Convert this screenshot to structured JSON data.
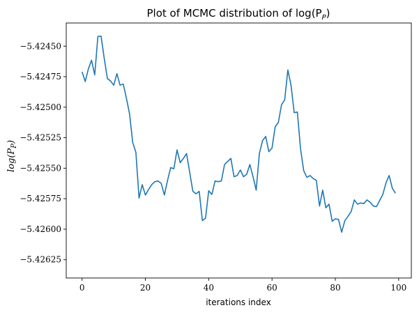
{
  "chart_data": {
    "type": "line",
    "title": "Plot of MCMC distribution of log(P",
    "title_subscript": "P",
    "title_suffix": ")",
    "xlabel": "iterations index",
    "ylabel": "log(P",
    "ylabel_subscript": "P",
    "ylabel_suffix": ")",
    "xlim": [
      -5,
      104
    ],
    "ylim": [
      -5.4264,
      -5.42431
    ],
    "x_ticks": [
      0,
      20,
      40,
      60,
      80,
      100
    ],
    "x_tick_labels": [
      "0",
      "20",
      "40",
      "60",
      "80",
      "100"
    ],
    "y_ticks": [
      -5.4245,
      -5.42475,
      -5.425,
      -5.42525,
      -5.4255,
      -5.42575,
      -5.426,
      -5.42625
    ],
    "y_tick_labels": [
      "−5.42450",
      "−5.42475",
      "−5.42500",
      "−5.42525",
      "−5.42550",
      "−5.42575",
      "−5.42600",
      "−5.42625"
    ],
    "grid": false,
    "line_color": "#1f77b4",
    "series": [
      {
        "x": [
          0,
          1,
          2,
          3,
          4,
          5,
          6,
          7,
          8,
          9,
          10,
          11,
          12,
          13,
          14,
          15,
          16,
          17,
          18,
          19,
          20,
          21,
          22,
          23,
          24,
          25,
          26,
          27,
          28,
          29,
          30,
          31,
          32,
          33,
          34,
          35,
          36,
          37,
          38,
          39,
          40,
          41,
          42,
          43,
          44,
          45,
          46,
          47,
          48,
          49,
          50,
          51,
          52,
          53,
          54,
          55,
          56,
          57,
          58,
          59,
          60,
          61,
          62,
          63,
          64,
          65,
          66,
          67,
          68,
          69,
          70,
          71,
          72,
          73,
          74,
          75,
          76,
          77,
          78,
          79,
          80,
          81,
          82,
          83,
          84,
          85,
          86,
          87,
          88,
          89,
          90,
          91,
          92,
          93,
          94,
          95,
          96,
          97,
          98,
          99
        ],
        "values": [
          -5.42471,
          -5.42479,
          -5.424685,
          -5.424615,
          -5.424735,
          -5.42442,
          -5.424418,
          -5.4246,
          -5.424765,
          -5.424785,
          -5.42482,
          -5.424725,
          -5.42482,
          -5.42481,
          -5.424925,
          -5.425055,
          -5.42529,
          -5.42537,
          -5.425745,
          -5.425635,
          -5.42572,
          -5.425675,
          -5.425635,
          -5.42561,
          -5.425605,
          -5.425625,
          -5.42572,
          -5.4256,
          -5.425495,
          -5.425505,
          -5.42535,
          -5.425455,
          -5.42542,
          -5.42538,
          -5.425535,
          -5.42569,
          -5.42571,
          -5.42569,
          -5.42593,
          -5.42591,
          -5.425685,
          -5.425715,
          -5.425605,
          -5.42561,
          -5.425605,
          -5.42547,
          -5.425445,
          -5.42542,
          -5.42557,
          -5.42556,
          -5.425515,
          -5.42557,
          -5.42555,
          -5.42547,
          -5.42557,
          -5.42568,
          -5.42538,
          -5.425275,
          -5.42524,
          -5.425365,
          -5.425335,
          -5.42516,
          -5.425125,
          -5.42498,
          -5.42494,
          -5.424695,
          -5.42482,
          -5.425045,
          -5.42504,
          -5.42534,
          -5.42552,
          -5.425575,
          -5.42556,
          -5.425585,
          -5.4256,
          -5.42581,
          -5.42568,
          -5.425825,
          -5.425795,
          -5.425935,
          -5.425915,
          -5.42592,
          -5.426025,
          -5.42593,
          -5.425895,
          -5.425855,
          -5.42576,
          -5.425795,
          -5.425785,
          -5.42579,
          -5.42576,
          -5.42578,
          -5.42581,
          -5.425815,
          -5.425765,
          -5.425715,
          -5.42562,
          -5.42556,
          -5.425665,
          -5.425705
        ]
      }
    ]
  }
}
